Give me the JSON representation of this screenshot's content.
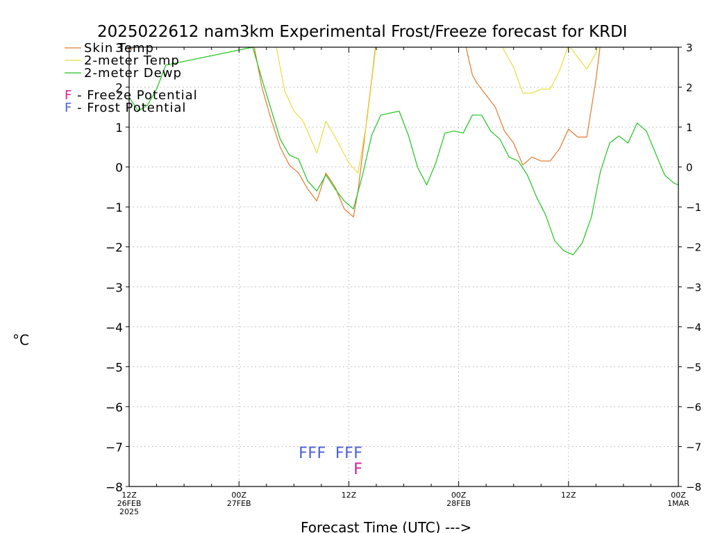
{
  "chart_data": {
    "type": "line",
    "title": "2025022612 nam3km Experimental Frost/Freeze forecast for KRDI",
    "ylabel": "°C",
    "xlabel": "Forecast Time (UTC) --->",
    "ylim": [
      -8,
      3
    ],
    "xlim": [
      0,
      60
    ],
    "yticks": [
      "−8",
      "−7",
      "−6",
      "−5",
      "−4",
      "−3",
      "−2",
      "−1",
      "0",
      "1",
      "2",
      "3"
    ],
    "ytick_values": [
      -8,
      -7,
      -6,
      -5,
      -4,
      -3,
      -2,
      -1,
      0,
      1,
      2,
      3
    ],
    "xticks": [
      {
        "x": 0,
        "lines": [
          "12Z",
          "26FEB",
          "2025"
        ]
      },
      {
        "x": 12,
        "lines": [
          "00Z",
          "27FEB"
        ]
      },
      {
        "x": 24,
        "lines": [
          "12Z"
        ]
      },
      {
        "x": 36,
        "lines": [
          "00Z",
          "28FEB"
        ]
      },
      {
        "x": 48,
        "lines": [
          "12Z"
        ]
      },
      {
        "x": 60,
        "lines": [
          "00Z",
          "1MAR"
        ]
      }
    ],
    "grid": true,
    "legend_position": "top-left",
    "series": [
      {
        "name": "Skin Temp",
        "color": "#e07a2c",
        "x": [
          0,
          1,
          2,
          3,
          4,
          13.5,
          14.5,
          15.5,
          16.5,
          17.5,
          18.5,
          19.5,
          20.5,
          21.5,
          22.5,
          23.5,
          24.5,
          25,
          26.5,
          27,
          36.5,
          37.5,
          38,
          39,
          40,
          41,
          42,
          43,
          44,
          45,
          46,
          47,
          48,
          49,
          50,
          51,
          51.5
        ],
        "y": [
          2.9,
          3.1,
          3.4,
          4.0,
          4.5,
          3.2,
          2.0,
          1.2,
          0.5,
          0.05,
          -0.15,
          -0.55,
          -0.85,
          -0.15,
          -0.5,
          -1.05,
          -1.25,
          -0.6,
          2.2,
          3.2,
          3.3,
          2.3,
          2.1,
          1.8,
          1.5,
          0.9,
          0.6,
          0.05,
          0.25,
          0.15,
          0.15,
          0.45,
          0.95,
          0.75,
          0.75,
          2.2,
          3.1
        ]
      },
      {
        "name": "2-meter Temp",
        "color": "#e8dd3c",
        "x": [
          0,
          2,
          4,
          13.5,
          15.5,
          17,
          18,
          19,
          20.5,
          21.5,
          22.5,
          24,
          25,
          26,
          27,
          40,
          42,
          43,
          44,
          45,
          46,
          47,
          48,
          50,
          51,
          51.5
        ],
        "y": [
          3.3,
          3.8,
          4.4,
          3.3,
          3.7,
          1.9,
          1.4,
          1.15,
          0.35,
          1.15,
          0.75,
          0.1,
          -0.15,
          1.2,
          3.1,
          3.3,
          2.5,
          1.85,
          1.85,
          1.95,
          1.95,
          2.4,
          3.05,
          2.45,
          2.85,
          3.3
        ]
      },
      {
        "name": "2-meter Dewp",
        "color": "#1fc41f",
        "x": [
          0,
          1,
          2,
          3,
          4,
          13.5,
          14.5,
          15.5,
          16.5,
          17.5,
          18.5,
          19.5,
          20.5,
          21.5,
          22.5,
          23.5,
          24.5,
          25.5,
          26.5,
          27.5,
          28.5,
          29.5,
          30.5,
          31.5,
          32.5,
          33.5,
          34.5,
          35.5,
          36.5,
          37.5,
          38.5,
          39.5,
          40.5,
          41.5,
          42.5,
          43.5,
          44.5,
          45.5,
          46.5,
          47.5,
          48.5,
          49.5,
          50.5,
          51.5,
          52.5,
          53.5,
          54.5,
          55.5,
          56.5,
          57.5,
          58.5,
          59.5,
          60
        ],
        "y": [
          1.75,
          1.4,
          1.55,
          1.95,
          2.55,
          3.0,
          2.2,
          1.45,
          0.7,
          0.3,
          0.2,
          -0.35,
          -0.6,
          -0.2,
          -0.55,
          -0.85,
          -1.05,
          -0.2,
          0.8,
          1.3,
          1.35,
          1.4,
          0.8,
          0.0,
          -0.45,
          0.1,
          0.85,
          0.9,
          0.85,
          1.3,
          1.3,
          0.9,
          0.7,
          0.25,
          0.15,
          -0.2,
          -0.75,
          -1.2,
          -1.85,
          -2.1,
          -2.2,
          -1.9,
          -1.25,
          -0.1,
          0.6,
          0.78,
          0.6,
          1.1,
          0.9,
          0.35,
          -0.2,
          -0.4,
          -0.45
        ]
      }
    ],
    "legend_items": [
      {
        "label": "Skin Temp",
        "color": "#e07a2c"
      },
      {
        "label": "2-meter Temp",
        "color": "#e8dd3c"
      },
      {
        "label": "2-meter Dewp",
        "color": "#1fc41f"
      }
    ],
    "potential_legend": [
      {
        "symbol": "F",
        "text": " - Freeze Potential",
        "color": "#d21e9a"
      },
      {
        "symbol": "F",
        "text": " - Frost Potential",
        "color": "#4a5fd6"
      }
    ],
    "frost_markers": {
      "symbol": "F",
      "color": "#4a5fd6",
      "x": [
        19,
        20,
        21,
        23,
        24,
        25
      ],
      "y": -7.15
    },
    "freeze_markers": {
      "symbol": "F",
      "color": "#d21e9a",
      "x": [
        25
      ],
      "y": -7.55
    }
  }
}
